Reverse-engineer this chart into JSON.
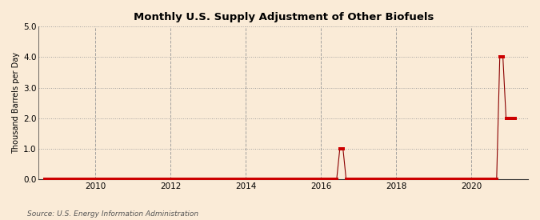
{
  "title": "Monthly U.S. Supply Adjustment of Other Biofuels",
  "ylabel": "Thousand Barrels per Day",
  "source": "Source: U.S. Energy Information Administration",
  "background_color": "#faebd7",
  "line_color": "#8b0000",
  "marker_color": "#cc0000",
  "ylim": [
    0,
    5.0
  ],
  "yticks": [
    0.0,
    1.0,
    2.0,
    3.0,
    4.0,
    5.0
  ],
  "xlim_start": 2008.5,
  "xlim_end": 2021.5,
  "xticks": [
    2010,
    2012,
    2014,
    2016,
    2018,
    2020
  ],
  "data_points": {
    "2008-09": 0.0,
    "2008-10": 0.0,
    "2008-11": 0.0,
    "2008-12": 0.0,
    "2009-01": 0.0,
    "2009-02": 0.0,
    "2009-03": 0.0,
    "2009-04": 0.0,
    "2009-05": 0.0,
    "2009-06": 0.0,
    "2009-07": 0.0,
    "2009-08": 0.0,
    "2009-09": 0.0,
    "2009-10": 0.0,
    "2009-11": 0.0,
    "2009-12": 0.0,
    "2010-01": 0.0,
    "2010-02": 0.0,
    "2010-03": 0.0,
    "2010-04": 0.0,
    "2010-05": 0.0,
    "2010-06": 0.0,
    "2010-07": 0.0,
    "2010-08": 0.0,
    "2010-09": 0.0,
    "2010-10": 0.0,
    "2010-11": 0.0,
    "2010-12": 0.0,
    "2011-01": 0.0,
    "2011-02": 0.0,
    "2011-03": 0.0,
    "2011-04": 0.0,
    "2011-05": 0.0,
    "2011-06": 0.0,
    "2011-07": 0.0,
    "2011-08": 0.0,
    "2011-09": 0.0,
    "2011-10": 0.0,
    "2011-11": 0.0,
    "2011-12": 0.0,
    "2012-01": 0.0,
    "2012-02": 0.0,
    "2012-03": 0.0,
    "2012-04": 0.0,
    "2012-05": 0.0,
    "2012-06": 0.0,
    "2012-07": 0.0,
    "2012-08": 0.0,
    "2012-09": 0.0,
    "2012-10": 0.0,
    "2012-11": 0.0,
    "2012-12": 0.0,
    "2013-01": 0.0,
    "2013-02": 0.0,
    "2013-03": 0.0,
    "2013-04": 0.0,
    "2013-05": 0.0,
    "2013-06": 0.0,
    "2013-07": 0.0,
    "2013-08": 0.0,
    "2013-09": 0.0,
    "2013-10": 0.0,
    "2013-11": 0.0,
    "2013-12": 0.0,
    "2014-01": 0.0,
    "2014-02": 0.0,
    "2014-03": 0.0,
    "2014-04": 0.0,
    "2014-05": 0.0,
    "2014-06": 0.0,
    "2014-07": 0.0,
    "2014-08": 0.0,
    "2014-09": 0.0,
    "2014-10": 0.0,
    "2014-11": 0.0,
    "2014-12": 0.0,
    "2015-01": 0.0,
    "2015-02": 0.0,
    "2015-03": 0.0,
    "2015-04": 0.0,
    "2015-05": 0.0,
    "2015-06": 0.0,
    "2015-07": 0.0,
    "2015-08": 0.0,
    "2015-09": 0.0,
    "2015-10": 0.0,
    "2015-11": 0.0,
    "2015-12": 0.0,
    "2016-01": 0.0,
    "2016-02": 0.0,
    "2016-03": 0.0,
    "2016-04": 0.0,
    "2016-05": 0.0,
    "2016-06": 0.0,
    "2016-07": 1.0,
    "2016-08": 1.0,
    "2016-09": 0.0,
    "2016-10": 0.0,
    "2016-11": 0.0,
    "2016-12": 0.0,
    "2017-01": 0.0,
    "2017-02": 0.0,
    "2017-03": 0.0,
    "2017-04": 0.0,
    "2017-05": 0.0,
    "2017-06": 0.0,
    "2017-07": 0.0,
    "2017-08": 0.0,
    "2017-09": 0.0,
    "2017-10": 0.0,
    "2017-11": 0.0,
    "2017-12": 0.0,
    "2018-01": 0.0,
    "2018-02": 0.0,
    "2018-03": 0.0,
    "2018-04": 0.0,
    "2018-05": 0.0,
    "2018-06": 0.0,
    "2018-07": 0.0,
    "2018-08": 0.0,
    "2018-09": 0.0,
    "2018-10": 0.0,
    "2018-11": 0.0,
    "2018-12": 0.0,
    "2019-01": 0.0,
    "2019-02": 0.0,
    "2019-03": 0.0,
    "2019-04": 0.0,
    "2019-05": 0.0,
    "2019-06": 0.0,
    "2019-07": 0.0,
    "2019-08": 0.0,
    "2019-09": 0.0,
    "2019-10": 0.0,
    "2019-11": 0.0,
    "2019-12": 0.0,
    "2020-01": 0.0,
    "2020-02": 0.0,
    "2020-03": 0.0,
    "2020-04": 0.0,
    "2020-05": 0.0,
    "2020-06": 0.0,
    "2020-07": 0.0,
    "2020-08": 0.0,
    "2020-09": 0.0,
    "2020-10": 4.0,
    "2020-11": 4.0,
    "2020-12": 2.0,
    "2021-01": 2.0,
    "2021-02": 2.0,
    "2021-03": 2.0
  }
}
